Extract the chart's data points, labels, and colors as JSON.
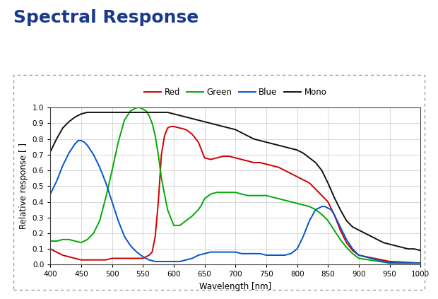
{
  "title": "Spectral Response",
  "title_color": "#1a3a8c",
  "xlabel": "Wavelength [nm]",
  "ylabel": "Relative response [ ]",
  "xlim": [
    400,
    1000
  ],
  "ylim": [
    0.0,
    1.0
  ],
  "xticks": [
    400,
    450,
    500,
    550,
    600,
    650,
    700,
    750,
    800,
    850,
    900,
    950,
    1000
  ],
  "yticks": [
    0.0,
    0.1,
    0.2,
    0.3,
    0.4,
    0.5,
    0.6,
    0.7,
    0.8,
    0.9,
    1.0
  ],
  "legend_labels": [
    "Red",
    "Green",
    "Blue",
    "Mono"
  ],
  "line_colors": [
    "#cc0000",
    "#00aa00",
    "#0055cc",
    "#111111"
  ],
  "red": {
    "x": [
      400,
      410,
      420,
      430,
      440,
      450,
      460,
      470,
      480,
      490,
      500,
      510,
      520,
      530,
      540,
      550,
      555,
      560,
      565,
      570,
      575,
      580,
      585,
      590,
      595,
      600,
      610,
      620,
      630,
      640,
      650,
      660,
      670,
      680,
      690,
      700,
      710,
      720,
      730,
      740,
      750,
      760,
      770,
      780,
      790,
      800,
      810,
      820,
      830,
      840,
      850,
      860,
      870,
      880,
      890,
      900,
      950,
      1000
    ],
    "y": [
      0.1,
      0.08,
      0.06,
      0.05,
      0.04,
      0.03,
      0.03,
      0.03,
      0.03,
      0.03,
      0.04,
      0.04,
      0.04,
      0.04,
      0.04,
      0.04,
      0.05,
      0.06,
      0.08,
      0.18,
      0.4,
      0.7,
      0.82,
      0.87,
      0.88,
      0.88,
      0.87,
      0.86,
      0.83,
      0.78,
      0.68,
      0.67,
      0.68,
      0.69,
      0.69,
      0.68,
      0.67,
      0.66,
      0.65,
      0.65,
      0.64,
      0.63,
      0.62,
      0.6,
      0.58,
      0.56,
      0.54,
      0.52,
      0.48,
      0.44,
      0.4,
      0.32,
      0.22,
      0.14,
      0.09,
      0.06,
      0.02,
      0.01
    ]
  },
  "green": {
    "x": [
      400,
      410,
      420,
      430,
      440,
      450,
      460,
      470,
      480,
      490,
      500,
      510,
      520,
      530,
      540,
      545,
      550,
      555,
      560,
      565,
      570,
      575,
      580,
      590,
      600,
      610,
      620,
      630,
      640,
      645,
      650,
      660,
      670,
      680,
      690,
      700,
      710,
      720,
      730,
      740,
      750,
      760,
      770,
      780,
      790,
      800,
      810,
      820,
      830,
      840,
      850,
      860,
      870,
      880,
      890,
      900,
      950,
      1000
    ],
    "y": [
      0.15,
      0.15,
      0.16,
      0.16,
      0.15,
      0.14,
      0.16,
      0.2,
      0.28,
      0.43,
      0.6,
      0.78,
      0.92,
      0.98,
      1.0,
      1.0,
      0.99,
      0.98,
      0.95,
      0.9,
      0.82,
      0.7,
      0.55,
      0.35,
      0.25,
      0.25,
      0.28,
      0.31,
      0.35,
      0.38,
      0.42,
      0.45,
      0.46,
      0.46,
      0.46,
      0.46,
      0.45,
      0.44,
      0.44,
      0.44,
      0.44,
      0.43,
      0.42,
      0.41,
      0.4,
      0.39,
      0.38,
      0.37,
      0.35,
      0.32,
      0.28,
      0.22,
      0.16,
      0.11,
      0.07,
      0.04,
      0.01,
      0.01
    ]
  },
  "blue": {
    "x": [
      400,
      410,
      420,
      430,
      440,
      445,
      450,
      455,
      460,
      470,
      480,
      490,
      500,
      510,
      520,
      530,
      540,
      550,
      560,
      570,
      580,
      590,
      600,
      610,
      620,
      630,
      640,
      650,
      660,
      670,
      680,
      690,
      700,
      710,
      720,
      730,
      740,
      750,
      760,
      770,
      780,
      790,
      800,
      810,
      820,
      830,
      840,
      845,
      850,
      855,
      860,
      870,
      880,
      890,
      900,
      950,
      1000
    ],
    "y": [
      0.45,
      0.53,
      0.63,
      0.71,
      0.77,
      0.79,
      0.79,
      0.78,
      0.76,
      0.7,
      0.62,
      0.52,
      0.4,
      0.28,
      0.18,
      0.12,
      0.08,
      0.05,
      0.03,
      0.02,
      0.02,
      0.02,
      0.02,
      0.02,
      0.03,
      0.04,
      0.06,
      0.07,
      0.08,
      0.08,
      0.08,
      0.08,
      0.08,
      0.07,
      0.07,
      0.07,
      0.07,
      0.06,
      0.06,
      0.06,
      0.06,
      0.07,
      0.1,
      0.18,
      0.28,
      0.35,
      0.37,
      0.37,
      0.36,
      0.35,
      0.32,
      0.24,
      0.16,
      0.1,
      0.06,
      0.01,
      0.01
    ]
  },
  "mono": {
    "x": [
      400,
      410,
      420,
      430,
      440,
      450,
      460,
      470,
      480,
      490,
      500,
      510,
      520,
      530,
      540,
      550,
      560,
      570,
      580,
      590,
      600,
      610,
      620,
      630,
      640,
      650,
      660,
      670,
      680,
      690,
      700,
      710,
      720,
      730,
      740,
      750,
      760,
      770,
      780,
      790,
      800,
      810,
      820,
      830,
      840,
      850,
      860,
      870,
      880,
      890,
      900,
      910,
      920,
      930,
      940,
      950,
      960,
      970,
      980,
      990,
      1000
    ],
    "y": [
      0.72,
      0.8,
      0.87,
      0.91,
      0.94,
      0.96,
      0.97,
      0.97,
      0.97,
      0.97,
      0.97,
      0.97,
      0.97,
      0.97,
      0.97,
      0.97,
      0.97,
      0.97,
      0.97,
      0.97,
      0.96,
      0.95,
      0.94,
      0.93,
      0.92,
      0.91,
      0.9,
      0.89,
      0.88,
      0.87,
      0.86,
      0.84,
      0.82,
      0.8,
      0.79,
      0.78,
      0.77,
      0.76,
      0.75,
      0.74,
      0.73,
      0.71,
      0.68,
      0.65,
      0.6,
      0.52,
      0.43,
      0.35,
      0.28,
      0.24,
      0.22,
      0.2,
      0.18,
      0.16,
      0.14,
      0.13,
      0.12,
      0.11,
      0.1,
      0.1,
      0.09
    ]
  }
}
